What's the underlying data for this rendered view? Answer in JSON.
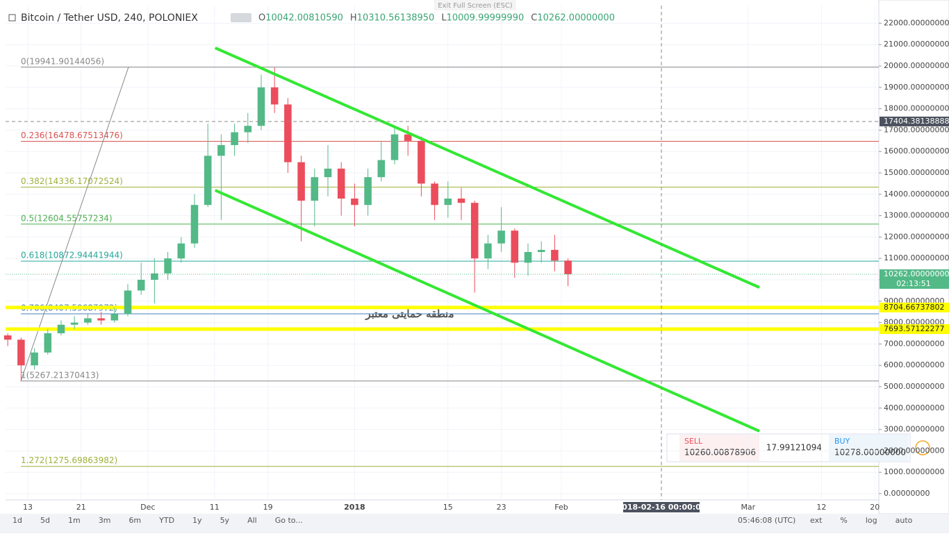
{
  "exit_hint": "Exit Full Screen (ESC)",
  "header": {
    "symbol": "Bitcoin / Tether USD, 240, POLONIEX",
    "ohlc": [
      {
        "key": "O",
        "value": "10042.00810590"
      },
      {
        "key": "H",
        "value": "10310.56138950"
      },
      {
        "key": "L",
        "value": "10009.99999990"
      },
      {
        "key": "C",
        "value": "10262.00000000"
      }
    ]
  },
  "chart_data": {
    "type": "candlestick",
    "x": [
      -3,
      -1,
      1,
      3,
      5,
      7,
      9,
      11,
      13,
      15,
      17,
      19,
      21,
      23,
      25,
      27,
      29,
      31,
      33,
      35,
      37,
      39,
      41,
      43,
      45,
      47,
      49,
      51,
      53,
      55,
      57,
      59,
      61,
      63,
      65,
      67,
      69,
      71,
      73,
      75,
      77,
      79,
      81
    ],
    "open": [
      7400,
      7200,
      6000,
      6600,
      7500,
      7900,
      8000,
      8200,
      8100,
      8400,
      9500,
      10000,
      10300,
      11000,
      11700,
      13500,
      15800,
      16300,
      16900,
      17200,
      19000,
      18200,
      15500,
      13700,
      14800,
      15200,
      13800,
      13500,
      14800,
      15600,
      16800,
      16500,
      14500,
      13500,
      13800,
      13600,
      11000,
      11700,
      12300,
      10800,
      11300,
      11400,
      10900
    ],
    "high": [
      7500,
      7300,
      6800,
      7700,
      8100,
      8300,
      8400,
      8500,
      8700,
      9800,
      10800,
      11000,
      11300,
      12000,
      14000,
      17300,
      16800,
      17300,
      17800,
      19600,
      19941,
      18500,
      15800,
      15200,
      16300,
      15500,
      14500,
      15200,
      16500,
      17200,
      17200,
      16700,
      14600,
      14600,
      14300,
      13700,
      12100,
      13400,
      12400,
      11700,
      11800,
      12100,
      11000
    ],
    "low": [
      6900,
      5267,
      5800,
      6500,
      7400,
      7700,
      7900,
      7900,
      8000,
      8300,
      9300,
      8900,
      10000,
      10800,
      11500,
      13400,
      12800,
      15800,
      16400,
      17000,
      17800,
      15000,
      11800,
      12500,
      13900,
      13000,
      12500,
      13000,
      14600,
      15400,
      15800,
      13900,
      12800,
      12900,
      12800,
      9400,
      10500,
      11300,
      10100,
      10200,
      10800,
      10400,
      9700
    ],
    "close": [
      7200,
      6000,
      6600,
      7500,
      7900,
      8000,
      8200,
      8100,
      8400,
      9500,
      10000,
      10300,
      11000,
      11700,
      13500,
      15800,
      16300,
      16900,
      17200,
      19000,
      18200,
      15500,
      13700,
      14800,
      15200,
      13800,
      13500,
      14800,
      15600,
      16800,
      16500,
      14500,
      13500,
      13800,
      13600,
      11000,
      11700,
      12300,
      10800,
      11300,
      11400,
      10900,
      10262
    ],
    "up_color": "#53b987",
    "down_color": "#eb4d5c",
    "xlim": [
      -3.33,
      127.6
    ],
    "ylim": [
      -292,
      22825
    ],
    "grid": true,
    "xticks": [
      {
        "value": 0,
        "label": "13"
      },
      {
        "value": 8,
        "label": "21"
      },
      {
        "value": 18,
        "label": "Dec"
      },
      {
        "value": 28,
        "label": "11"
      },
      {
        "value": 36,
        "label": "19"
      },
      {
        "value": 49,
        "label": "2018"
      },
      {
        "value": 63,
        "label": "15"
      },
      {
        "value": 71,
        "label": "23"
      },
      {
        "value": 80,
        "label": "Feb"
      },
      {
        "value": 108,
        "label": "Mar"
      },
      {
        "value": 119,
        "label": "12"
      },
      {
        "value": 127,
        "label": "20"
      }
    ],
    "yticks": [
      {
        "value": 0,
        "label": "0.00000000"
      },
      {
        "value": 1000,
        "label": "1000.00000000"
      },
      {
        "value": 2000,
        "label": "2000.00000000"
      },
      {
        "value": 3000,
        "label": "3000.00000000"
      },
      {
        "value": 4000,
        "label": "4000.00000000"
      },
      {
        "value": 5000,
        "label": "5000.00000000"
      },
      {
        "value": 6000,
        "label": "6000.00000000"
      },
      {
        "value": 7000,
        "label": "7000.00000000"
      },
      {
        "value": 8000,
        "label": "8000.00000000"
      },
      {
        "value": 9000,
        "label": "9000.00000000"
      },
      {
        "value": 10000,
        "label": "10000.00000000"
      },
      {
        "value": 11000,
        "label": "11000.00000000"
      },
      {
        "value": 12000,
        "label": "12000.00000000"
      },
      {
        "value": 13000,
        "label": "13000.00000000"
      },
      {
        "value": 14000,
        "label": "14000.00000000"
      },
      {
        "value": 15000,
        "label": "15000.00000000"
      },
      {
        "value": 16000,
        "label": "16000.00000000"
      },
      {
        "value": 17000,
        "label": "17000.00000000"
      },
      {
        "value": 18000,
        "label": "18000.00000000"
      },
      {
        "value": 19000,
        "label": "19000.00000000"
      },
      {
        "value": 20000,
        "label": "20000.00000000"
      },
      {
        "value": 21000,
        "label": "21000.00000000"
      },
      {
        "value": 22000,
        "label": "22000.00000000"
      }
    ],
    "fib_levels": [
      {
        "label": "0(19941.90144056)",
        "value": 19941.90144056,
        "color": "#888888"
      },
      {
        "label": "0.236(16478.67513476)",
        "value": 16478.67513476,
        "color": "#d9534f"
      },
      {
        "label": "0.382(14336.17072524)",
        "value": 14336.17072524,
        "color": "#9fb03a"
      },
      {
        "label": "0.5(12604.55757234)",
        "value": 12604.55757234,
        "color": "#4caf50"
      },
      {
        "label": "0.618(10872.94441944)",
        "value": 10872.94441944,
        "color": "#26a69a"
      },
      {
        "label": "0.786(8407.59687972)",
        "value": 8407.59687972,
        "color": "#4a80b8"
      },
      {
        "label": "1(5267.21370413)",
        "value": 5267.21370413,
        "color": "#888888"
      },
      {
        "label": "1.272(1275.69863982)",
        "value": 1275.69863982,
        "color": "#9fb03a"
      }
    ],
    "fib_trend": {
      "x": [
        -1.04,
        15.1
      ],
      "y": [
        5267.21370413,
        19941.90144056
      ],
      "color": "#888888"
    },
    "trend_lines": [
      {
        "x": [
          28.1,
          109.7
        ],
        "y": [
          20844,
          9643
        ],
        "color": "#33e833"
      },
      {
        "x": [
          28.1,
          109.7
        ],
        "y": [
          14188,
          2922
        ],
        "color": "#33e833"
      }
    ],
    "support_lines": [
      {
        "value": 8704.66737802,
        "label": "8704.66737802",
        "color": "#ffff00"
      },
      {
        "value": 7693.57122277,
        "label": "7693.57122277",
        "color": "#ffff00"
      }
    ],
    "annotation": "منطقه حمایتی معتبر",
    "last_price": {
      "value": 10262,
      "label": "10262.00000000",
      "countdown": "02:13:51",
      "color": "#53b987"
    },
    "crosshair": {
      "y": {
        "value": 17404.38138888,
        "label": "17404.38138888"
      },
      "x": {
        "value": 95,
        "label": "2018-02-16 00:00:00"
      }
    }
  },
  "trade_panel": {
    "sell_label": "SELL",
    "sell": "10260.00878906",
    "spread": "17.99121094",
    "buy_label": "BUY",
    "buy": "10278.00000000"
  },
  "toolbar": {
    "ranges": [
      "1d",
      "5d",
      "1m",
      "3m",
      "6m",
      "YTD",
      "1y",
      "5y",
      "All"
    ],
    "goto": "Go to...",
    "clock": "05:46:08 (UTC)",
    "options": [
      "ext",
      "%",
      "log",
      "auto"
    ]
  }
}
